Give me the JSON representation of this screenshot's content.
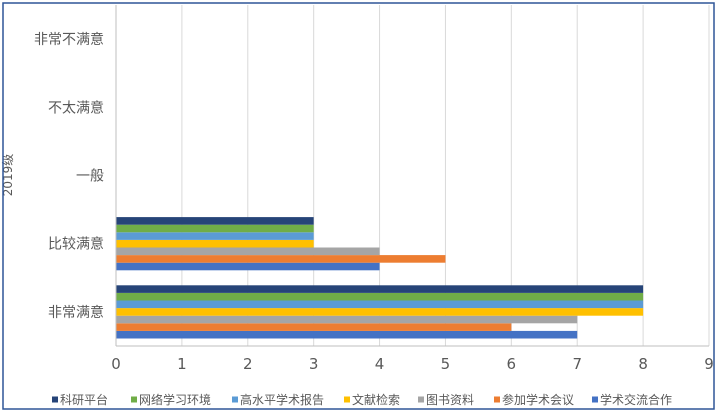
{
  "chart_data": {
    "type": "bar",
    "orientation": "horizontal",
    "categories": [
      "非常满意",
      "比较满意",
      "一般",
      "不太满意",
      "非常不满意"
    ],
    "series": [
      {
        "name": "学术交流合作",
        "color": "#4472C4",
        "values": [
          7,
          4,
          0,
          0,
          0
        ]
      },
      {
        "name": "参加学术会议",
        "color": "#ED7D31",
        "values": [
          6,
          5,
          0,
          0,
          0
        ]
      },
      {
        "name": "图书资料",
        "color": "#A5A5A5",
        "values": [
          7,
          4,
          0,
          0,
          0
        ]
      },
      {
        "name": "文献检索",
        "color": "#FFC000",
        "values": [
          8,
          3,
          0,
          0,
          0
        ]
      },
      {
        "name": "高水平学术报告",
        "color": "#5B9BD5",
        "values": [
          8,
          3,
          0,
          0,
          0
        ]
      },
      {
        "name": "网络学习环境",
        "color": "#70AD47",
        "values": [
          8,
          3,
          0,
          0,
          0
        ]
      },
      {
        "name": "科研平台",
        "color": "#264478",
        "values": [
          8,
          3,
          0,
          0,
          0
        ]
      }
    ],
    "legend_order": [
      "科研平台",
      "网络学习环境",
      "高水平学术报告",
      "文献检索",
      "图书资料",
      "参加学术会议",
      "学术交流合作"
    ],
    "ylabel": "2019级",
    "xlim": [
      0,
      9
    ],
    "xticks": [
      0,
      1,
      2,
      3,
      4,
      5,
      6,
      7,
      8,
      9
    ],
    "grid": true,
    "legend_position": "bottom",
    "frame_color": "#2F5597",
    "grid_color": "#D9D9D9"
  }
}
